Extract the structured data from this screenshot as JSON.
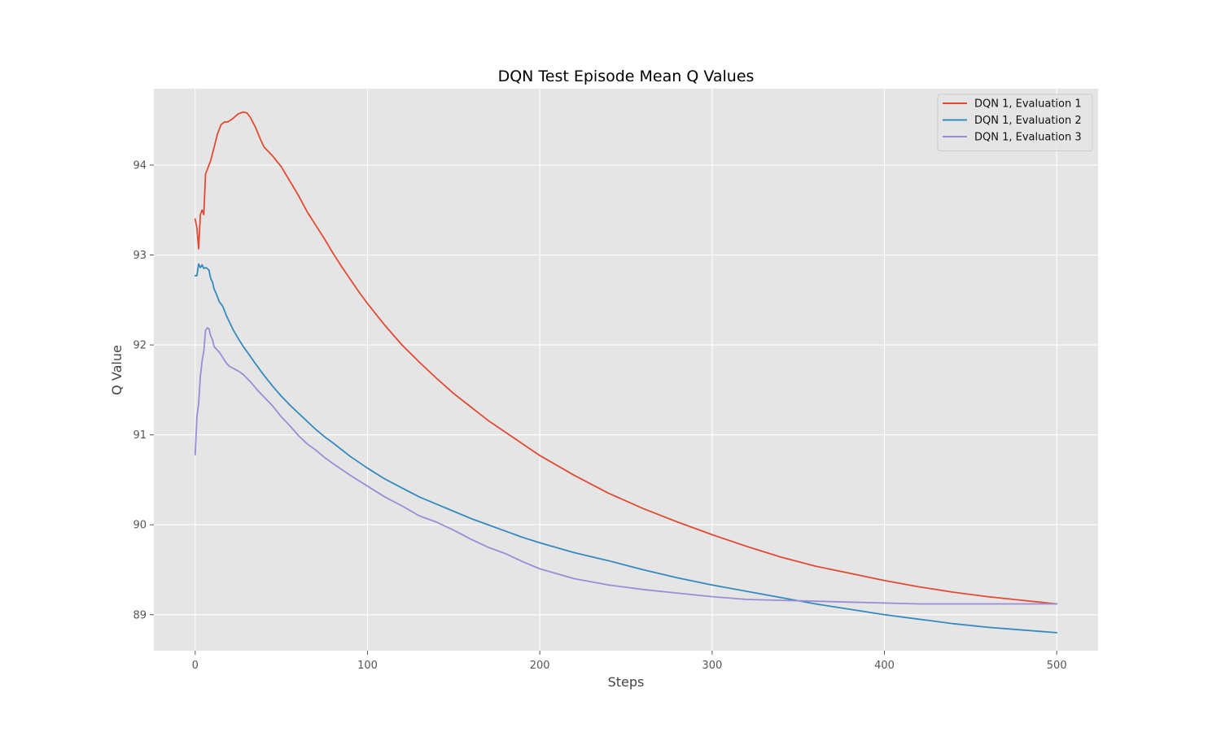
{
  "chart_data": {
    "type": "line",
    "title": "DQN Test Episode Mean Q Values",
    "xlabel": "Steps",
    "ylabel": "Q Value",
    "xlim": [
      -24,
      524
    ],
    "ylim": [
      88.6,
      94.85
    ],
    "xticks": [
      0,
      100,
      200,
      300,
      400,
      500
    ],
    "yticks": [
      89,
      90,
      91,
      92,
      93,
      94
    ],
    "grid": true,
    "legend_position": "top-right",
    "background_color": "#e5e5e5",
    "series": [
      {
        "name": "DQN 1, Evaluation 1",
        "color": "#e24a33",
        "x": [
          0,
          1,
          2,
          3,
          4,
          5,
          6,
          7,
          9,
          11,
          13,
          15,
          17,
          19,
          22,
          25,
          28,
          30,
          32,
          35,
          38,
          40,
          45,
          50,
          55,
          60,
          65,
          70,
          75,
          80,
          85,
          90,
          95,
          100,
          110,
          120,
          130,
          140,
          150,
          160,
          170,
          180,
          190,
          200,
          220,
          240,
          260,
          280,
          300,
          320,
          340,
          360,
          380,
          400,
          420,
          440,
          460,
          480,
          500
        ],
        "y": [
          93.4,
          93.3,
          93.07,
          93.45,
          93.5,
          93.45,
          93.9,
          93.95,
          94.05,
          94.2,
          94.35,
          94.45,
          94.48,
          94.48,
          94.52,
          94.57,
          94.59,
          94.58,
          94.53,
          94.42,
          94.28,
          94.2,
          94.1,
          93.98,
          93.82,
          93.66,
          93.48,
          93.33,
          93.18,
          93.02,
          92.87,
          92.73,
          92.59,
          92.46,
          92.22,
          92.0,
          91.81,
          91.63,
          91.46,
          91.31,
          91.16,
          91.03,
          90.9,
          90.77,
          90.55,
          90.35,
          90.18,
          90.03,
          89.89,
          89.76,
          89.64,
          89.54,
          89.46,
          89.38,
          89.31,
          89.25,
          89.2,
          89.16,
          89.12
        ]
      },
      {
        "name": "DQN 1, Evaluation 2",
        "color": "#348abd",
        "x": [
          0,
          1,
          2,
          3,
          4,
          5,
          6,
          7,
          8,
          9,
          10,
          11,
          12,
          14,
          16,
          18,
          20,
          22,
          25,
          28,
          31,
          35,
          40,
          45,
          50,
          55,
          60,
          65,
          70,
          75,
          80,
          90,
          100,
          110,
          120,
          130,
          140,
          150,
          160,
          170,
          180,
          190,
          200,
          220,
          240,
          260,
          280,
          300,
          320,
          340,
          360,
          380,
          400,
          420,
          440,
          460,
          480,
          500
        ],
        "y": [
          92.77,
          92.77,
          92.9,
          92.86,
          92.89,
          92.85,
          92.86,
          92.85,
          92.83,
          92.74,
          92.7,
          92.62,
          92.58,
          92.48,
          92.43,
          92.33,
          92.25,
          92.17,
          92.07,
          91.98,
          91.9,
          91.79,
          91.66,
          91.54,
          91.43,
          91.33,
          91.24,
          91.15,
          91.06,
          90.98,
          90.91,
          90.76,
          90.63,
          90.51,
          90.41,
          90.31,
          90.23,
          90.15,
          90.07,
          90.0,
          89.93,
          89.86,
          89.8,
          89.69,
          89.6,
          89.5,
          89.41,
          89.33,
          89.26,
          89.19,
          89.12,
          89.06,
          89.0,
          88.95,
          88.9,
          88.86,
          88.83,
          88.8
        ],
        "y_note": ""
      },
      {
        "name": "DQN 1, Evaluation 3",
        "color": "#988ed5",
        "x": [
          0,
          1,
          2,
          3,
          4,
          5,
          6,
          7,
          8,
          9,
          10,
          11,
          12,
          14,
          16,
          18,
          20,
          22,
          25,
          28,
          30,
          33,
          36,
          40,
          45,
          50,
          55,
          60,
          65,
          70,
          75,
          80,
          90,
          100,
          110,
          120,
          130,
          140,
          150,
          160,
          170,
          180,
          190,
          200,
          220,
          240,
          260,
          280,
          300,
          320,
          340,
          360,
          380,
          400,
          420,
          440,
          460,
          480,
          500
        ],
        "y": [
          90.78,
          91.2,
          91.35,
          91.65,
          91.82,
          91.93,
          92.16,
          92.19,
          92.18,
          92.1,
          92.06,
          91.98,
          91.96,
          91.92,
          91.86,
          91.8,
          91.76,
          91.74,
          91.71,
          91.67,
          91.63,
          91.57,
          91.5,
          91.42,
          91.32,
          91.2,
          91.1,
          90.99,
          90.9,
          90.83,
          90.75,
          90.68,
          90.55,
          90.43,
          90.31,
          90.21,
          90.1,
          90.03,
          89.94,
          89.84,
          89.75,
          89.68,
          89.59,
          89.51,
          89.4,
          89.33,
          89.28,
          89.24,
          89.2,
          89.17,
          89.16,
          89.15,
          89.14,
          89.13,
          89.12,
          89.12,
          89.12,
          89.12,
          89.12
        ]
      }
    ]
  }
}
